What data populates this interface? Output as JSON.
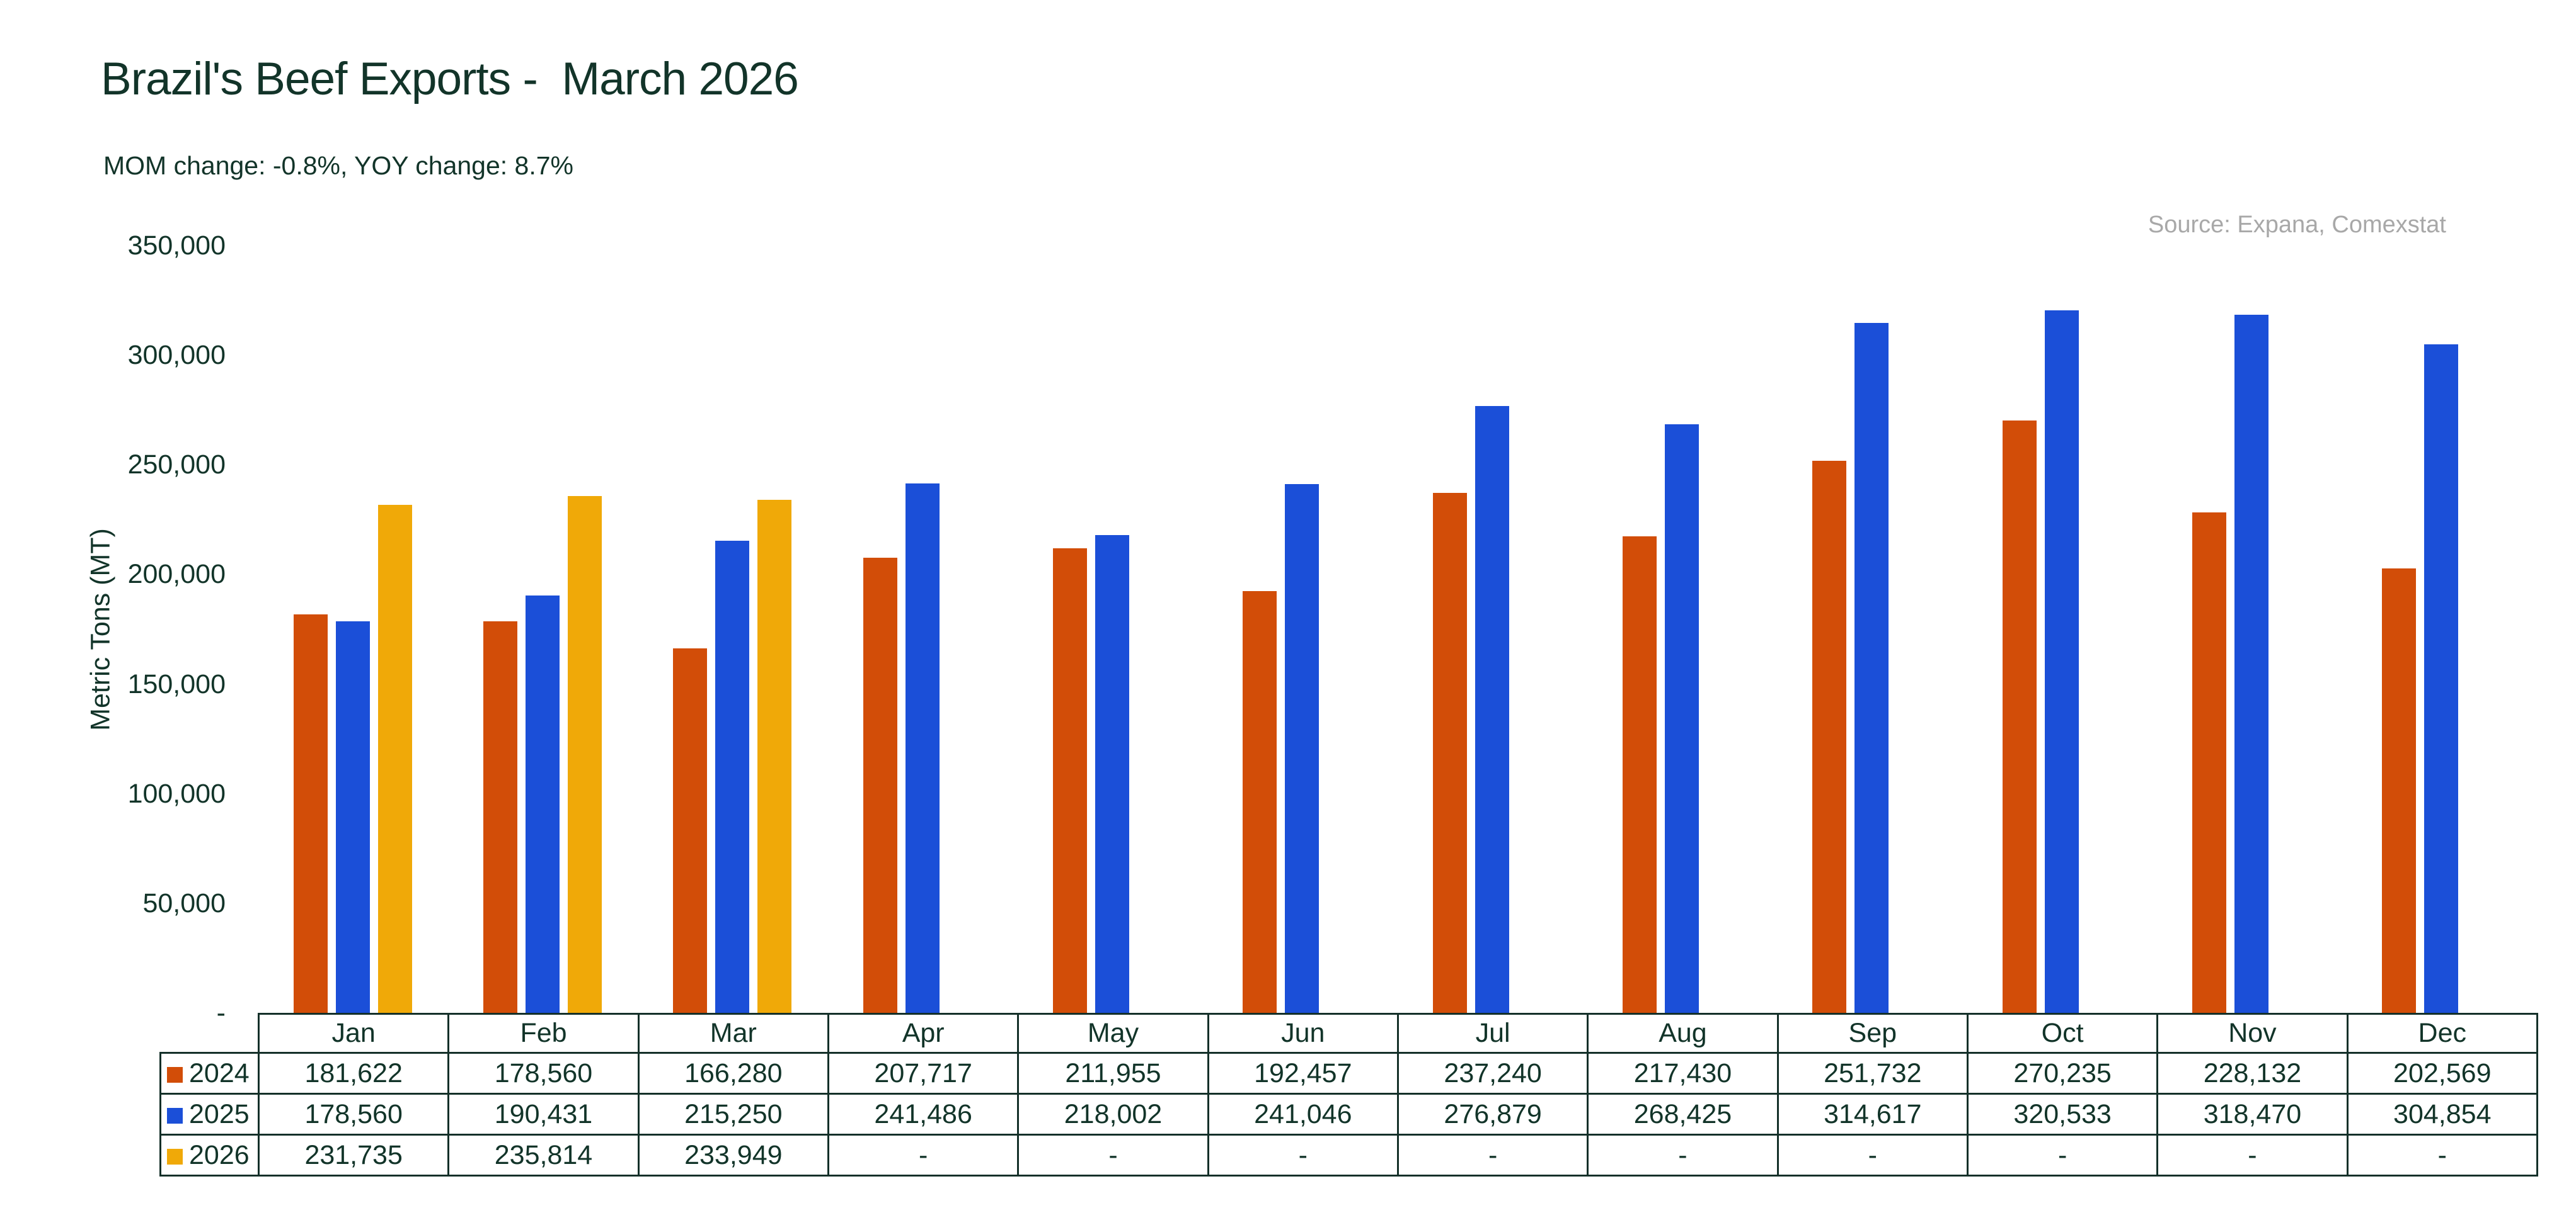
{
  "page": {
    "background": "#FFFFFF"
  },
  "colors": {
    "text": "#123429",
    "border": "#143029",
    "source": "#A8A8A8"
  },
  "chart_data": {
    "type": "bar",
    "title": "Brazil's Beef Exports -  March 2026",
    "subtitle": "MOM change: -0.8%, YOY change: 8.7%",
    "source": "Source: Expana, Comexstat",
    "xlabel": "",
    "ylabel": "Metric Tons (MT)",
    "ylim": [
      0,
      350000
    ],
    "grid": false,
    "legend_position": "table-rows-left",
    "missing_value_label": "-",
    "y_ticks": [
      {
        "label": "350,000",
        "value": 350000
      },
      {
        "label": "300,000",
        "value": 300000
      },
      {
        "label": "250,000",
        "value": 250000
      },
      {
        "label": "200,000",
        "value": 200000
      },
      {
        "label": "150,000",
        "value": 150000
      },
      {
        "label": "100,000",
        "value": 100000
      },
      {
        "label": "50,000",
        "value": 50000
      },
      {
        "label": "-",
        "value": 0
      }
    ],
    "categories": [
      "Jan",
      "Feb",
      "Mar",
      "Apr",
      "May",
      "Jun",
      "Jul",
      "Aug",
      "Sep",
      "Oct",
      "Nov",
      "Dec"
    ],
    "series": [
      {
        "name": "2024",
        "color": "#D24D08",
        "values": [
          181622,
          178560,
          166280,
          207717,
          211955,
          192457,
          237240,
          217430,
          251732,
          270235,
          228132,
          202569
        ]
      },
      {
        "name": "2025",
        "color": "#1B4FD8",
        "values": [
          178560,
          190431,
          215250,
          241486,
          218002,
          241046,
          276879,
          268425,
          314617,
          320533,
          318470,
          304854
        ]
      },
      {
        "name": "2026",
        "color": "#F0A908",
        "values": [
          231735,
          235814,
          233949,
          null,
          null,
          null,
          null,
          null,
          null,
          null,
          null,
          null
        ]
      }
    ]
  }
}
